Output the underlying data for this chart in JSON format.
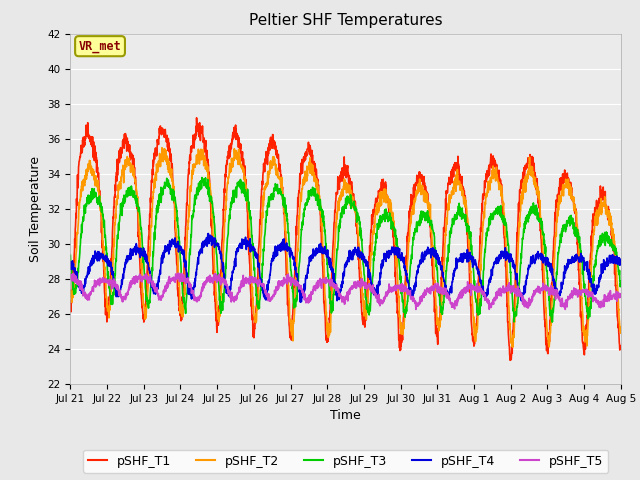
{
  "title": "Peltier SHF Temperatures",
  "xlabel": "Time",
  "ylabel": "Soil Temperature",
  "ylim": [
    22,
    42
  ],
  "fig_facecolor": "#e8e8e8",
  "plot_bg_color": "#ebebeb",
  "grid_color": "#ffffff",
  "annotation_text": "VR_met",
  "annotation_box_color": "#ffff99",
  "annotation_text_color": "#880000",
  "annotation_edge_color": "#999900",
  "series": [
    {
      "name": "pSHF_T1",
      "color": "#ff2200",
      "linewidth": 1.2
    },
    {
      "name": "pSHF_T2",
      "color": "#ff9900",
      "linewidth": 1.2
    },
    {
      "name": "pSHF_T3",
      "color": "#00cc00",
      "linewidth": 1.2
    },
    {
      "name": "pSHF_T4",
      "color": "#0000dd",
      "linewidth": 1.2
    },
    {
      "name": "pSHF_T5",
      "color": "#cc44cc",
      "linewidth": 1.2
    }
  ],
  "x_tick_labels": [
    "Jul 21",
    "Jul 22",
    "Jul 23",
    "Jul 24",
    "Jul 25",
    "Jul 26",
    "Jul 27",
    "Jul 28",
    "Jul 29",
    "Jul 30",
    "Jul 31",
    "Aug 1",
    "Aug 2",
    "Aug 3",
    "Aug 4",
    "Aug 5"
  ],
  "num_days": 15,
  "legend_fontsize": 9,
  "title_fontsize": 11,
  "tick_fontsize": 7.5,
  "axis_label_fontsize": 9
}
